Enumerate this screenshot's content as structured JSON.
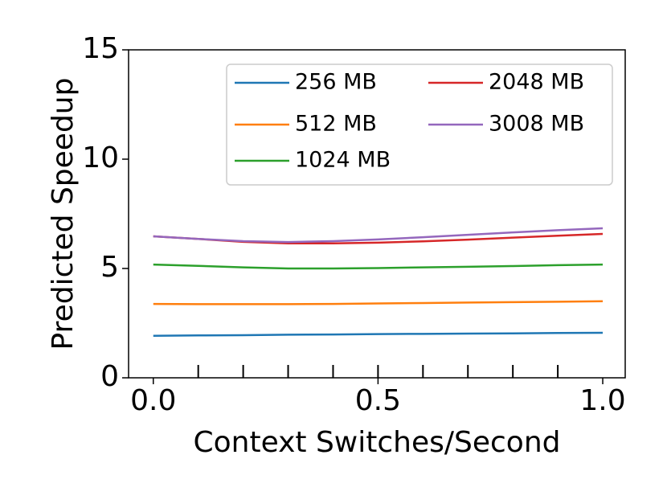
{
  "chart_data": {
    "type": "line",
    "x_label": "Context Switches/Second",
    "y_label": "Predicted Speedup",
    "x": [
      0,
      0.1,
      0.2,
      0.3,
      0.4,
      0.5,
      0.6,
      0.7,
      0.8,
      0.9,
      1.0
    ],
    "series": [
      {
        "name": "256 MB",
        "color": "#1f77b4",
        "values": [
          1.92,
          1.94,
          1.95,
          1.97,
          1.98,
          2.0,
          2.01,
          2.02,
          2.03,
          2.05,
          2.06
        ]
      },
      {
        "name": "512 MB",
        "color": "#ff7f0e",
        "values": [
          3.38,
          3.37,
          3.37,
          3.37,
          3.38,
          3.4,
          3.42,
          3.44,
          3.46,
          3.48,
          3.5
        ]
      },
      {
        "name": "1024 MB",
        "color": "#2ca02c",
        "values": [
          5.18,
          5.12,
          5.05,
          5.0,
          5.0,
          5.02,
          5.05,
          5.08,
          5.11,
          5.15,
          5.18
        ]
      },
      {
        "name": "2048 MB",
        "color": "#d62728",
        "values": [
          6.47,
          6.35,
          6.22,
          6.15,
          6.15,
          6.18,
          6.24,
          6.32,
          6.41,
          6.5,
          6.58
        ]
      },
      {
        "name": "3008 MB",
        "color": "#9467bd",
        "values": [
          6.47,
          6.35,
          6.25,
          6.21,
          6.25,
          6.33,
          6.43,
          6.54,
          6.65,
          6.75,
          6.84
        ]
      }
    ],
    "xlim": [
      -0.055,
      1.05
    ],
    "ylim": [
      0,
      15
    ],
    "xticks": [
      {
        "value": 0,
        "label": "0.0"
      },
      {
        "value": 0.5,
        "label": "0.5"
      },
      {
        "value": 1,
        "label": "1.0"
      }
    ],
    "xminorticks": [
      0.1,
      0.2,
      0.3,
      0.4,
      0.5,
      0.6,
      0.7,
      0.8,
      0.9
    ],
    "yticks": [
      0,
      5,
      10,
      15
    ],
    "legend": "upper-right"
  }
}
